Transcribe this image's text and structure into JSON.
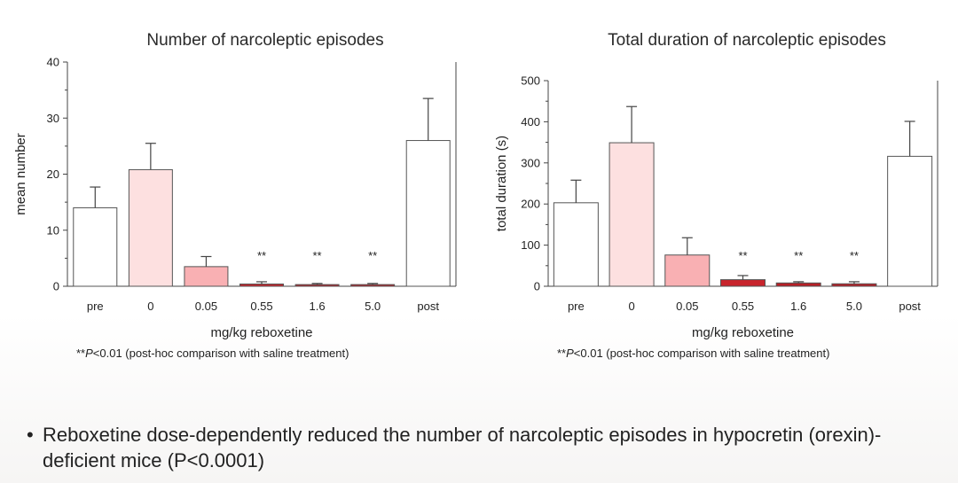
{
  "chart_data": [
    {
      "type": "bar",
      "title": "Number of narcoleptic episodes",
      "xlabel": "mg/kg reboxetine",
      "ylabel": "mean number",
      "ylim": [
        0,
        40
      ],
      "yticks": [
        "0",
        "10",
        "20",
        "30",
        "40"
      ],
      "categories": [
        "pre",
        "0",
        "0.05",
        "0.55",
        "1.6",
        "5.0",
        "post"
      ],
      "values": [
        14,
        20.8,
        3.5,
        0.4,
        0.3,
        0.3,
        26
      ],
      "errors": [
        3.7,
        4.7,
        1.8,
        0.4,
        0.2,
        0.2,
        7.5
      ],
      "significance": [
        "",
        "",
        "",
        "**",
        "**",
        "**",
        ""
      ],
      "colors": [
        "#ffffff",
        "#fde0e0",
        "#f9b0b3",
        "#c8242c",
        "#b81f26",
        "#b81f26",
        "#ffffff"
      ],
      "footnote": {
        "stars": "**",
        "p": "P",
        "rest": "<0.01 (post-hoc comparison with saline treatment)"
      }
    },
    {
      "type": "bar",
      "title": "Total duration of narcoleptic episodes",
      "xlabel": "mg/kg reboxetine",
      "ylabel": "total duration (s)",
      "ylim": [
        0,
        500
      ],
      "yticks": [
        "0",
        "100",
        "200",
        "300",
        "400",
        "500"
      ],
      "categories": [
        "pre",
        "0",
        "0.05",
        "0.55",
        "1.6",
        "5.0",
        "post"
      ],
      "values": [
        203,
        349,
        76,
        16,
        8,
        6,
        316
      ],
      "errors": [
        55,
        88,
        42,
        10,
        3,
        5,
        85
      ],
      "significance": [
        "",
        "",
        "",
        "**",
        "**",
        "**",
        ""
      ],
      "colors": [
        "#ffffff",
        "#fde0e0",
        "#f9b0b3",
        "#c8242c",
        "#b81f26",
        "#b81f26",
        "#ffffff"
      ],
      "footnote": {
        "stars": "**",
        "p": "P",
        "rest": "<0.01 (post-hoc comparison with saline treatment)"
      }
    }
  ],
  "bullet": {
    "symbol": "•",
    "text": "Reboxetine dose-dependently reduced the number of narcoleptic episodes in hypocretin (orexin)-deficient mice (P<0.0001)"
  }
}
